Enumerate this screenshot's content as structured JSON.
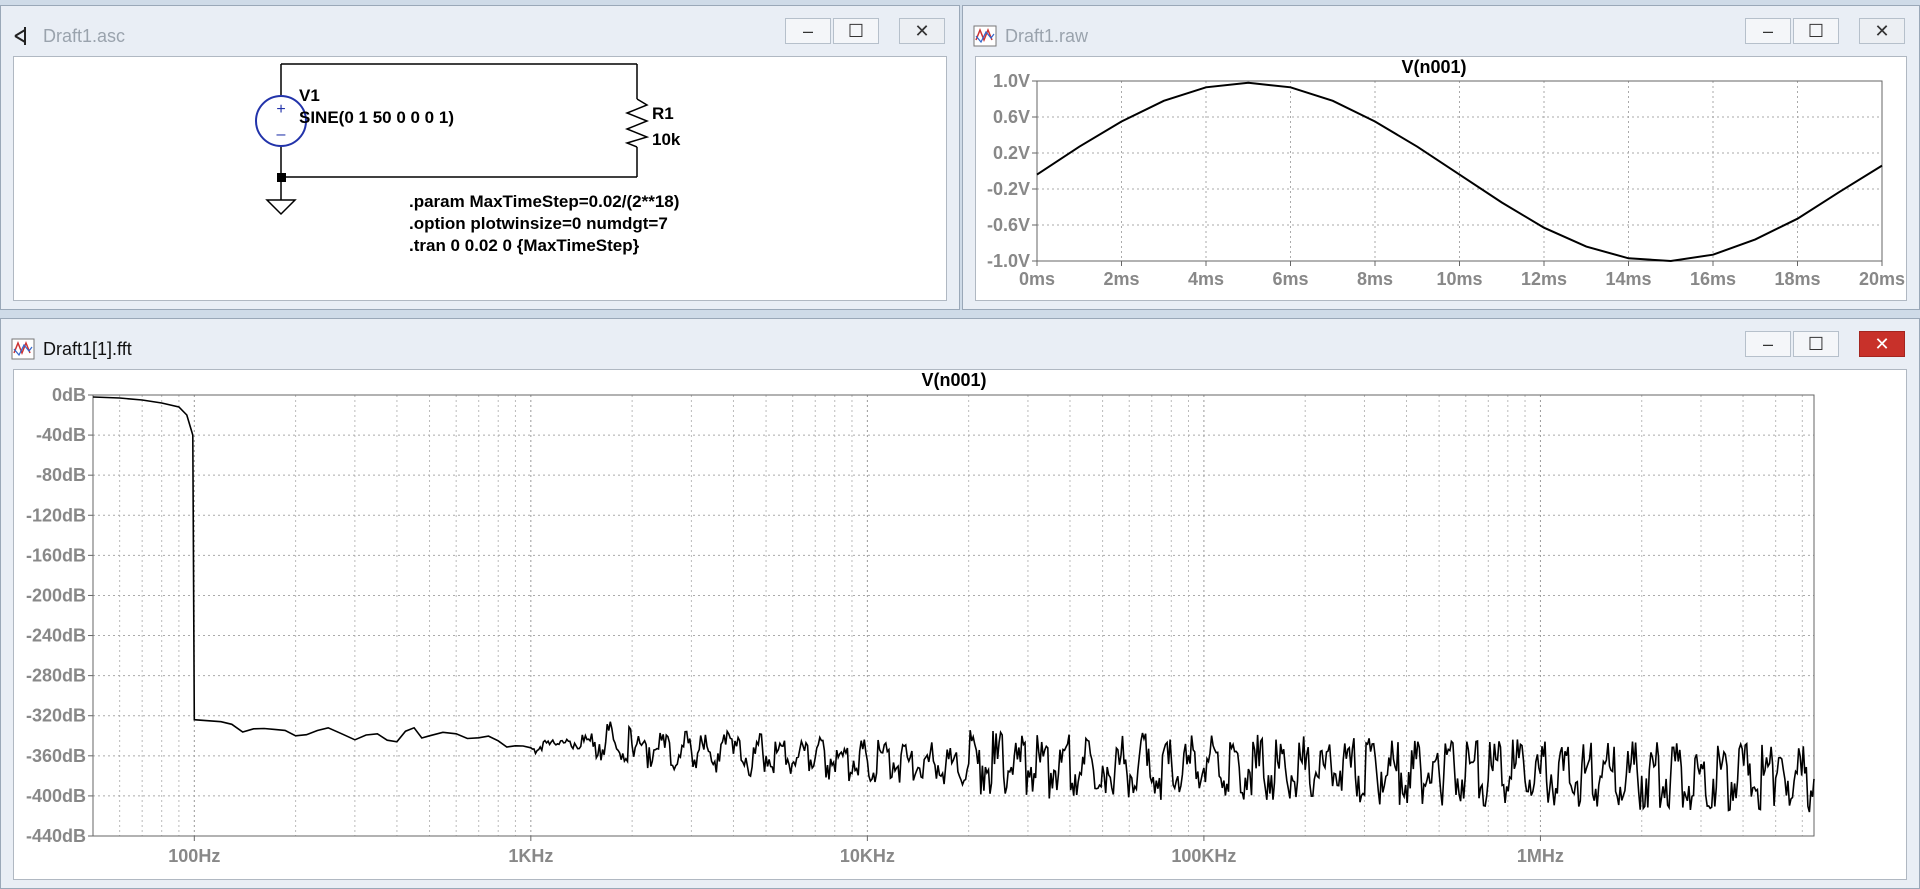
{
  "windows": {
    "schematic": {
      "title": "Draft1.asc"
    },
    "waveform": {
      "title": "Draft1.raw"
    },
    "fft": {
      "title": "Draft1[1].fft"
    }
  },
  "controls": {
    "minimize": "–",
    "maximize": "☐",
    "close": "✕"
  },
  "schematic": {
    "source_name": "V1",
    "source_value": "SINE(0 1 50 0 0 0 1)",
    "resistor_name": "R1",
    "resistor_value": "10k",
    "directives": [
      ".param MaxTimeStep=0.02/(2**18)",
      ".option plotwinsize=0 numdgt=7",
      ".tran 0 0.02 0 {MaxTimeStep}"
    ],
    "plus_sign": "+",
    "minus_sign": "–"
  },
  "chart_data": [
    {
      "type": "line",
      "title": "V(n001)",
      "x_ticks": [
        "0ms",
        "2ms",
        "4ms",
        "6ms",
        "8ms",
        "10ms",
        "12ms",
        "14ms",
        "16ms",
        "18ms",
        "20ms"
      ],
      "y_ticks": [
        "1.0V",
        "0.6V",
        "0.2V",
        "-0.2V",
        "-0.6V",
        "-1.0V"
      ],
      "xlim_ms": [
        0,
        20
      ],
      "ylim_V": [
        -1.0,
        1.0
      ],
      "grid": true,
      "series": [
        {
          "x": [
            0,
            1,
            2,
            3,
            4,
            5,
            6,
            7,
            8,
            9,
            10,
            11,
            12,
            13,
            14,
            15,
            16,
            17,
            18,
            19,
            20
          ],
          "y": [
            -0.04,
            0.27,
            0.55,
            0.78,
            0.93,
            0.98,
            0.93,
            0.78,
            0.55,
            0.27,
            -0.04,
            -0.35,
            -0.63,
            -0.84,
            -0.97,
            -1.0,
            -0.93,
            -0.76,
            -0.53,
            -0.23,
            0.06
          ]
        }
      ]
    },
    {
      "type": "line",
      "title": "V(n001)",
      "x_ticks": [
        "100Hz",
        "1KHz",
        "10KHz",
        "100KHz",
        "1MHz"
      ],
      "y_ticks": [
        "0dB",
        "-40dB",
        "-80dB",
        "-120dB",
        "-160dB",
        "-200dB",
        "-240dB",
        "-280dB",
        "-320dB",
        "-360dB",
        "-400dB",
        "-440dB"
      ],
      "x_scale": "log",
      "xlim_Hz": [
        50,
        6500000
      ],
      "ylim_dB": [
        -440,
        0
      ],
      "grid": true,
      "series": [
        {
          "x": [
            50,
            60,
            70,
            80,
            90,
            95,
            99,
            100,
            120,
            150,
            200,
            250,
            300,
            350,
            400,
            450,
            500,
            600,
            700,
            800,
            900,
            1000,
            1200,
            1500,
            2000,
            2500,
            3000,
            4000,
            5000,
            7000,
            10000,
            20000,
            50000,
            100000,
            200000,
            500000,
            1000000,
            2000000,
            5000000,
            6500000
          ],
          "y": [
            -2,
            -3,
            -5,
            -8,
            -12,
            -20,
            -40,
            -324,
            -326,
            -333,
            -340,
            -332,
            -344,
            -338,
            -346,
            -332,
            -340,
            -338,
            -342,
            -345,
            -350,
            -352,
            -348,
            -345,
            -350,
            -352,
            -355,
            -358,
            -360,
            -362,
            -365,
            -368,
            -370,
            -372,
            -374,
            -376,
            -378,
            -380,
            -382,
            -383
          ]
        }
      ]
    }
  ]
}
